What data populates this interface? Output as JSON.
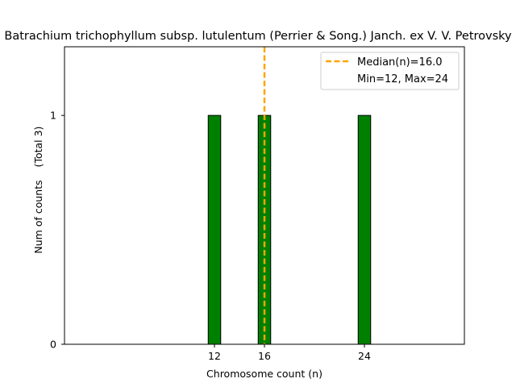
{
  "chart_data": {
    "type": "bar",
    "title": "Batrachium trichophyllum subsp. lutulentum (Perrier & Song.) Janch. ex V. V. Petrovsky",
    "xlabel": "Chromosome count (n)",
    "ylabel": "Num of counts",
    "ylabel_total": "(Total 3)",
    "xlim": [
      0,
      32
    ],
    "ylim": [
      0,
      1.3
    ],
    "xticks": [
      12,
      16,
      24
    ],
    "yticks": [
      0,
      1
    ],
    "bin_width": 1,
    "bars": [
      {
        "x": 12,
        "count": 1
      },
      {
        "x": 16,
        "count": 1
      },
      {
        "x": 24,
        "count": 1
      }
    ],
    "bar_color": "#008000",
    "baseline_end": 27.5,
    "median": 16.0,
    "median_color": "#FFA500",
    "legend": {
      "placement": "top-right",
      "entries": [
        "Median(n)=16.0",
        "Min=12, Max=24"
      ]
    }
  }
}
